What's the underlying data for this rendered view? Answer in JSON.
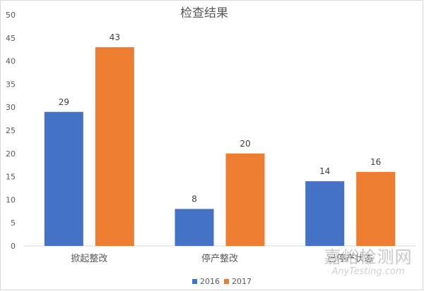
{
  "chart_data": {
    "type": "bar",
    "title": "检查结果",
    "categories": [
      "掀起整改",
      "停产整改",
      "已停产状态"
    ],
    "series": [
      {
        "name": "2016",
        "values": [
          29,
          8,
          14
        ],
        "color": "#4472c4"
      },
      {
        "name": "2017",
        "values": [
          43,
          20,
          16
        ],
        "color": "#ed7d31"
      }
    ],
    "ylim": [
      0,
      50
    ],
    "yticks": [
      0,
      5,
      10,
      15,
      20,
      25,
      30,
      35,
      40,
      45,
      50
    ],
    "grid": false,
    "data_labels": true,
    "legend_position": "bottom"
  },
  "watermark": {
    "main": "嘉峪检测网",
    "sub": "AnyTesting.com"
  }
}
